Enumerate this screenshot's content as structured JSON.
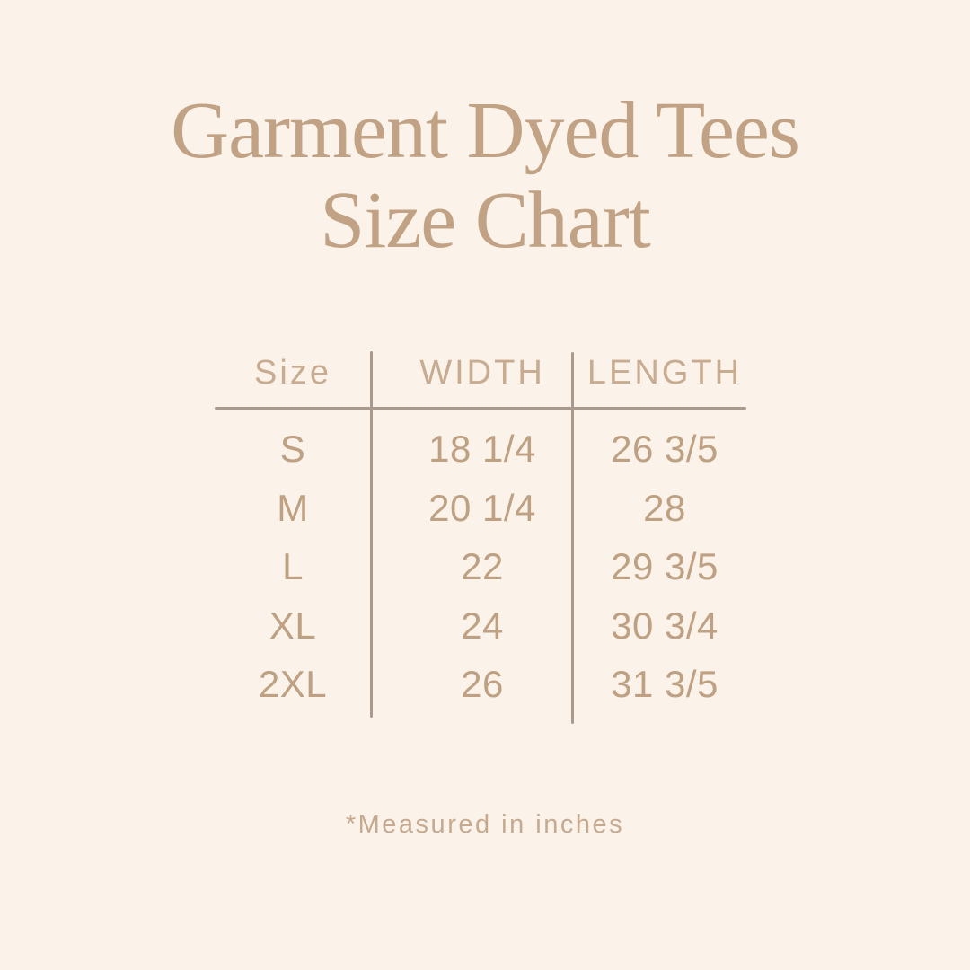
{
  "title": {
    "line1": "Garment Dyed Tees",
    "line2": "Size Chart"
  },
  "table": {
    "headers": [
      "Size",
      "WIDTH",
      "LENGTH"
    ],
    "rows": [
      {
        "size": "S",
        "width": "18 1/4",
        "length": "26 3/5"
      },
      {
        "size": "M",
        "width": "20 1/4",
        "length": "28"
      },
      {
        "size": "L",
        "width": "22",
        "length": "29 3/5"
      },
      {
        "size": "XL",
        "width": "24",
        "length": "30 3/4"
      },
      {
        "size": "2XL",
        "width": "26",
        "length": "31 3/5"
      }
    ]
  },
  "footnote": "*Measured in inches",
  "colors": {
    "bg": "#FBF2E9",
    "title": "#C1A284",
    "header": "#C7AC92",
    "text": "#BEA083",
    "line": "#A89B8E",
    "footnote": "#C5AA90"
  },
  "chart_data": {
    "type": "table",
    "title": "Garment Dyed Tees Size Chart",
    "columns": [
      "Size",
      "WIDTH",
      "LENGTH"
    ],
    "rows": [
      [
        "S",
        "18 1/4",
        "26 3/5"
      ],
      [
        "M",
        "20 1/4",
        "28"
      ],
      [
        "L",
        "22",
        "29 3/5"
      ],
      [
        "XL",
        "24",
        "30 3/4"
      ],
      [
        "2XL",
        "26",
        "31 3/5"
      ]
    ],
    "units": "inches",
    "note": "*Measured in inches"
  }
}
